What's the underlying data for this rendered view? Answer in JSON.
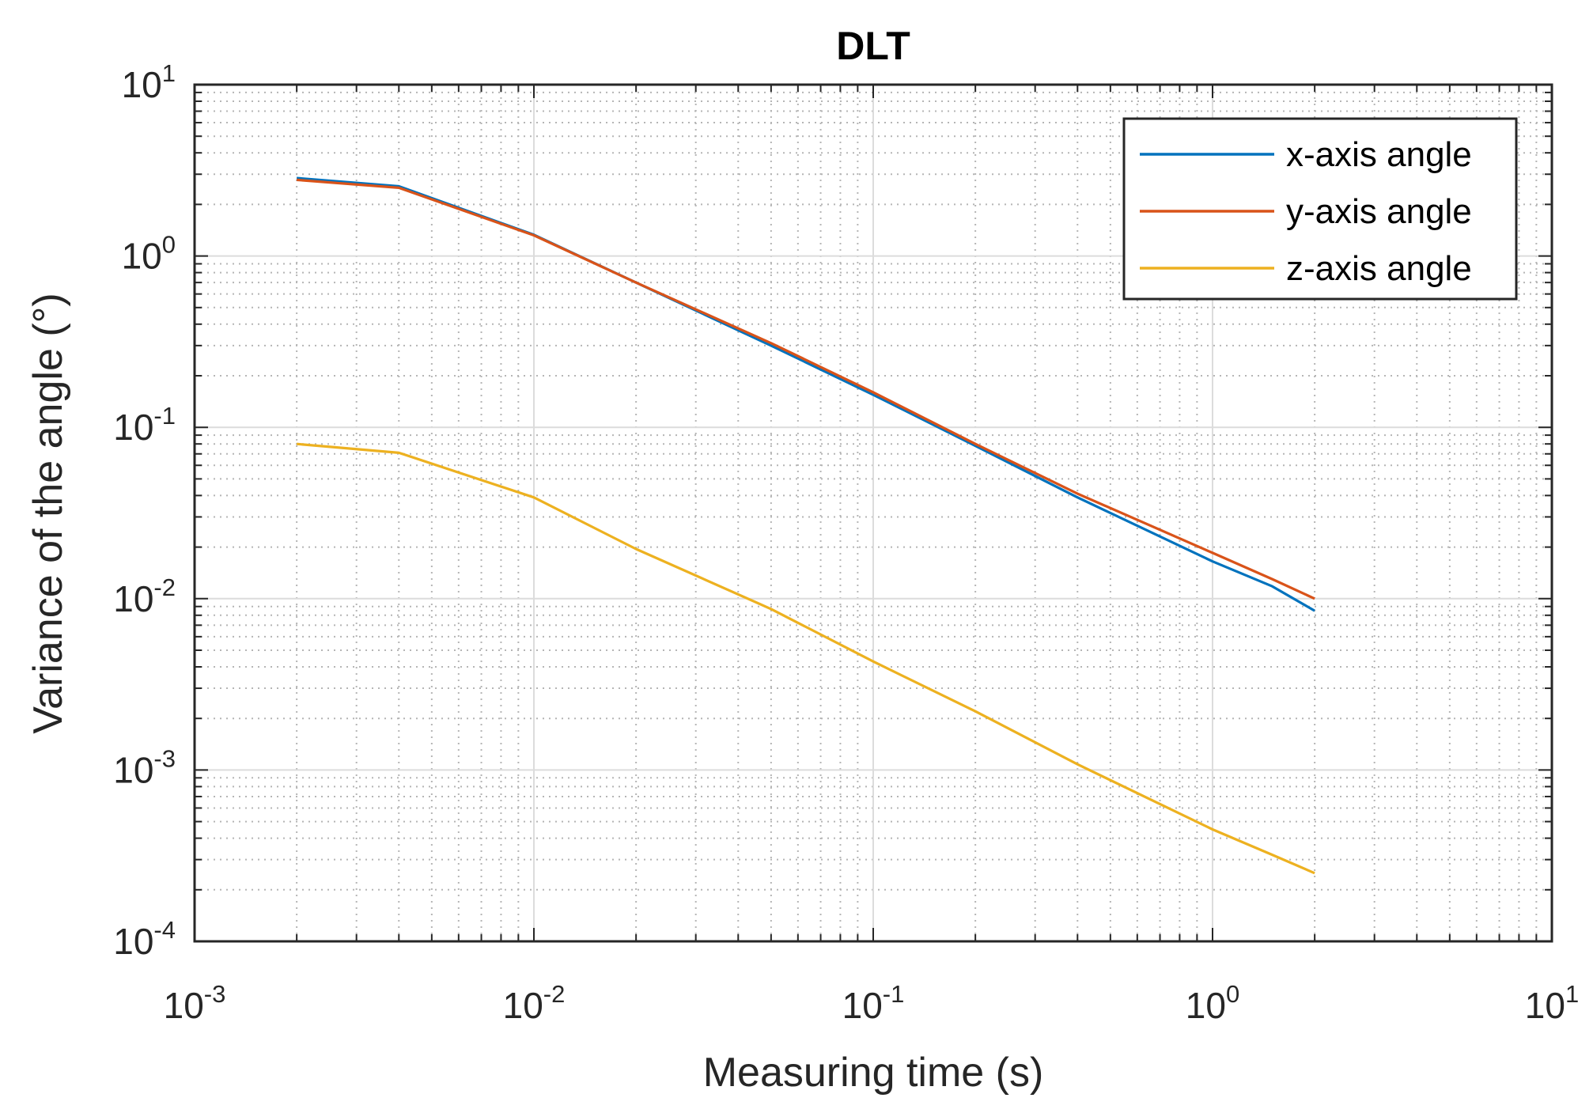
{
  "chart_data": {
    "type": "line",
    "title": "DLT",
    "xlabel": "Measuring time (s)",
    "ylabel": "Variance of the angle (°)",
    "xscale": "log",
    "yscale": "log",
    "xlim": [
      0.001,
      10
    ],
    "ylim": [
      0.0001,
      10
    ],
    "grid": true,
    "minor_grid": true,
    "legend_position": "top-right",
    "x_ticks": [
      {
        "value": 0.001,
        "base": "10",
        "exp": "-3"
      },
      {
        "value": 0.01,
        "base": "10",
        "exp": "-2"
      },
      {
        "value": 0.1,
        "base": "10",
        "exp": "-1"
      },
      {
        "value": 1,
        "base": "10",
        "exp": "0"
      },
      {
        "value": 10,
        "base": "10",
        "exp": "1"
      }
    ],
    "y_ticks": [
      {
        "value": 0.0001,
        "base": "10",
        "exp": "-4"
      },
      {
        "value": 0.001,
        "base": "10",
        "exp": "-3"
      },
      {
        "value": 0.01,
        "base": "10",
        "exp": "-2"
      },
      {
        "value": 0.1,
        "base": "10",
        "exp": "-1"
      },
      {
        "value": 1,
        "base": "10",
        "exp": "0"
      },
      {
        "value": 10,
        "base": "10",
        "exp": "1"
      }
    ],
    "series": [
      {
        "name": "x-axis angle",
        "color": "#0072BD",
        "x": [
          0.002,
          0.004,
          0.01,
          0.02,
          0.05,
          0.1,
          0.2,
          0.4,
          1,
          1.5,
          2
        ],
        "values": [
          2.85,
          2.55,
          1.33,
          0.7,
          0.3,
          0.155,
          0.078,
          0.039,
          0.0165,
          0.0118,
          0.0085
        ]
      },
      {
        "name": "y-axis angle",
        "color": "#D95319",
        "x": [
          0.002,
          0.004,
          0.01,
          0.02,
          0.05,
          0.1,
          0.2,
          0.4,
          1,
          1.5,
          2
        ],
        "values": [
          2.78,
          2.5,
          1.32,
          0.7,
          0.31,
          0.16,
          0.08,
          0.041,
          0.0185,
          0.013,
          0.01
        ]
      },
      {
        "name": "z-axis angle",
        "color": "#EDB120",
        "x": [
          0.002,
          0.004,
          0.01,
          0.02,
          0.05,
          0.1,
          0.2,
          0.4,
          1,
          1.5,
          2
        ],
        "values": [
          0.08,
          0.071,
          0.039,
          0.0195,
          0.0087,
          0.0043,
          0.0022,
          0.00108,
          0.00045,
          0.00032,
          0.00025
        ]
      }
    ]
  }
}
